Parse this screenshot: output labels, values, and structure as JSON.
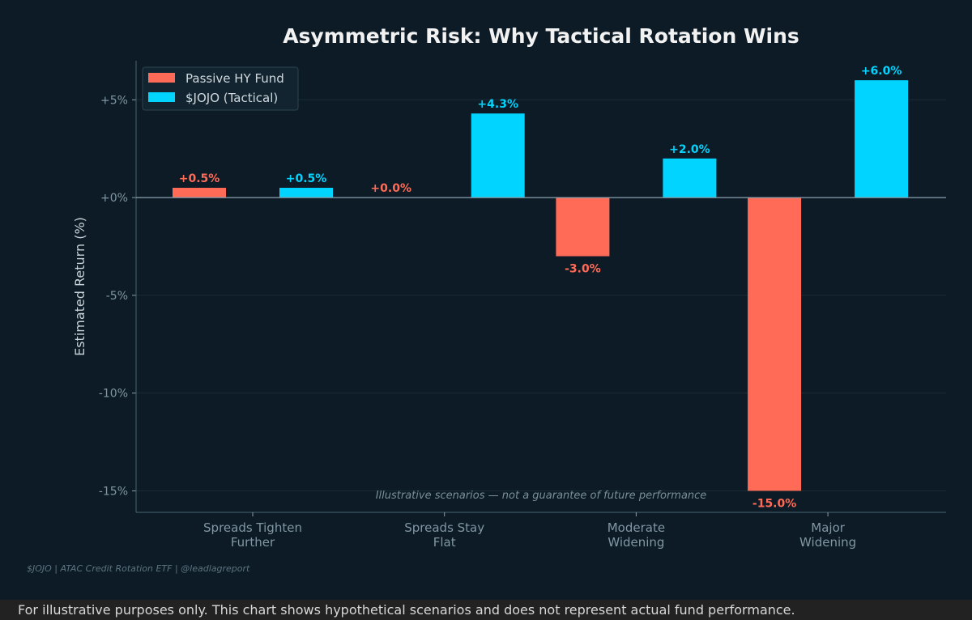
{
  "chart_data": {
    "type": "bar",
    "title": "Asymmetric Risk: Why Tactical Rotation Wins",
    "xlabel": "",
    "ylabel": "Estimated Return (%)",
    "ylim": [
      -16.1,
      7.0
    ],
    "yticks": [
      5,
      0,
      -5,
      -10,
      -15
    ],
    "ytick_labels": [
      "+5%",
      "+0%",
      "-5%",
      "-10%",
      "-15%"
    ],
    "categories": [
      "Spreads Tighten\nFurther",
      "Spreads Stay\nFlat",
      "Moderate\nWidening",
      "Major\nWidening"
    ],
    "series": [
      {
        "name": "Passive HY Fund",
        "color": "#ff6b57",
        "values": [
          0.5,
          0.0,
          -3.0,
          -15.0
        ],
        "labels": [
          "+0.5%",
          "+0.0%",
          "-3.0%",
          "-15.0%"
        ]
      },
      {
        "name": "$JOJO (Tactical)",
        "color": "#00d4ff",
        "values": [
          0.5,
          4.3,
          2.0,
          6.0
        ],
        "labels": [
          "+0.5%",
          "+4.3%",
          "+2.0%",
          "+6.0%"
        ]
      }
    ],
    "legend": "top-left",
    "grid": true,
    "annotation": "Illustrative scenarios — not a guarantee of future performance"
  },
  "credit": "$JOJO  |  ATAC Credit Rotation ETF  |  @leadlagreport",
  "footer": "For illustrative purposes only. This chart shows hypothetical scenarios and does not represent actual fund performance.",
  "colors": {
    "background": "#0c1b25",
    "axis": "#8aa0ad",
    "grid": "#1a2c36"
  }
}
